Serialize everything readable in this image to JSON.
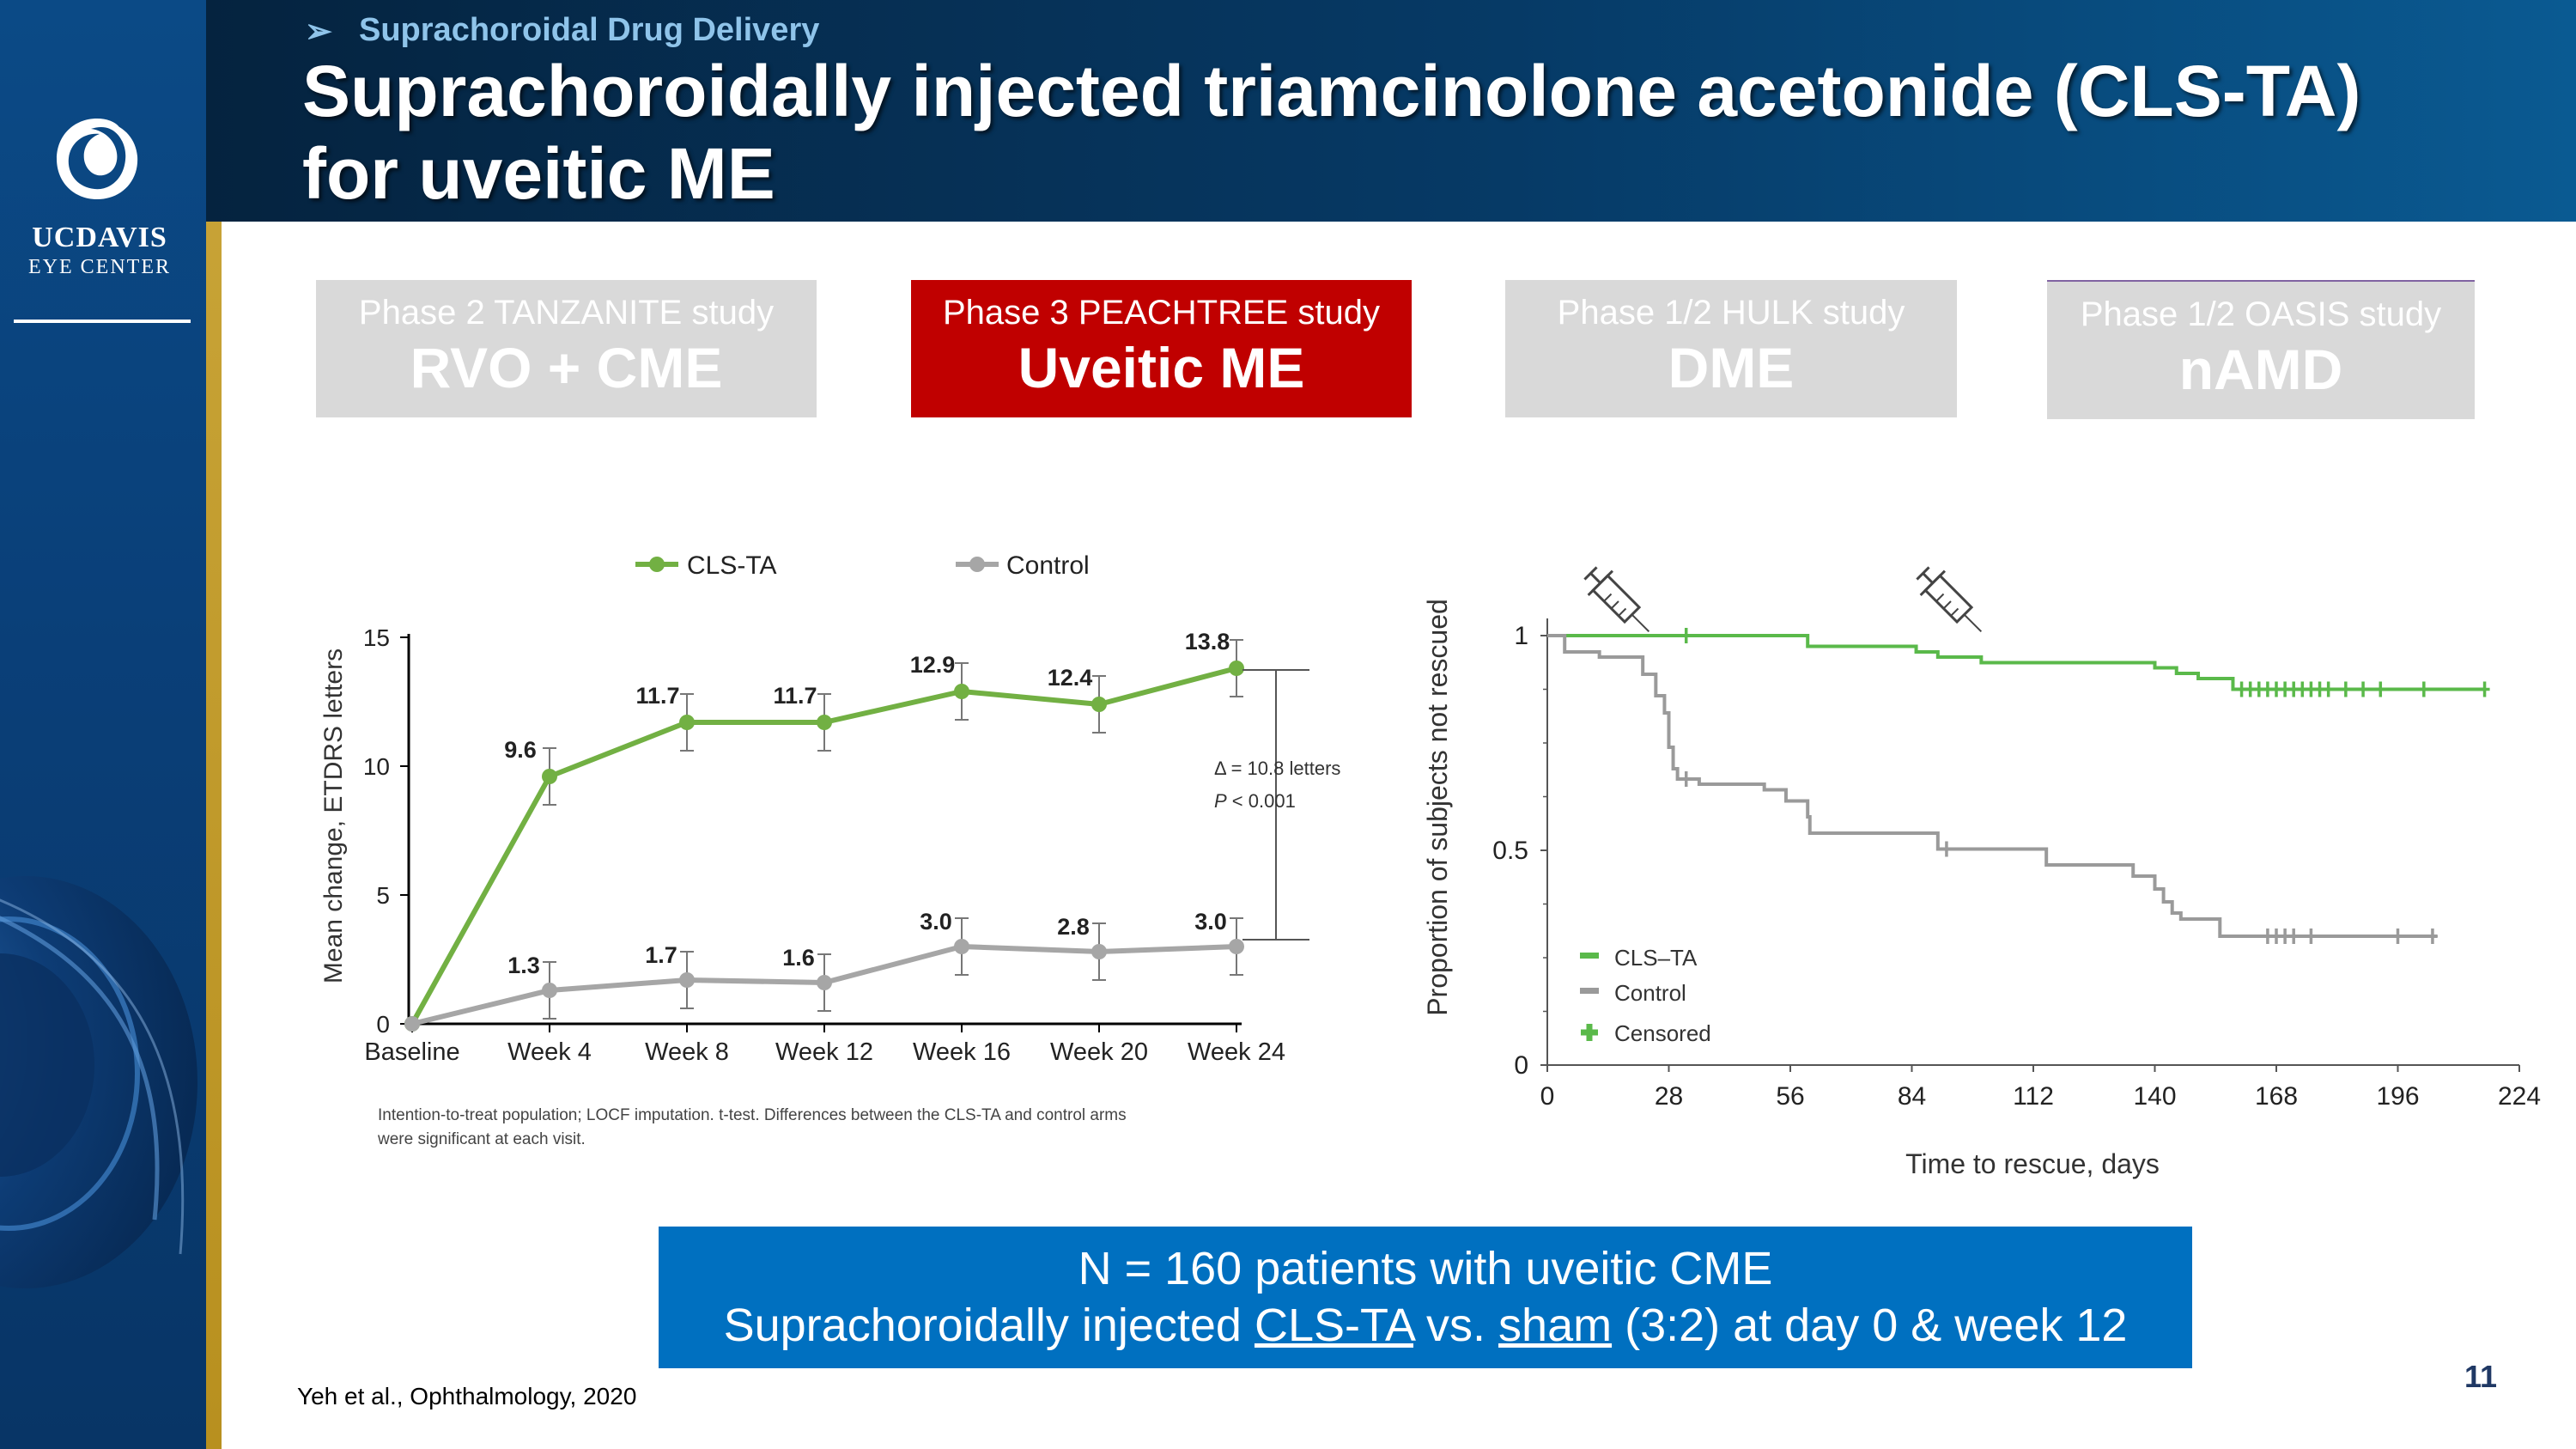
{
  "header": {
    "bullet": "➢",
    "subtitle": "Suprachoroidal Drug Delivery",
    "title_line1": "Suprachoroidally injected triamcinolone acetonide (CLS-TA)",
    "title_line2": "for uveitic ME"
  },
  "logo": {
    "line1_uc": "UC",
    "line1_davis": "DAVIS",
    "line2": "EYE CENTER"
  },
  "studies": [
    {
      "study": "Phase 2 TANZANITE study",
      "indication": "RVO + CME",
      "active": false
    },
    {
      "study": "Phase 3 PEACHTREE study",
      "indication": "Uveitic ME",
      "active": true
    },
    {
      "study": "Phase 1/2 HULK study",
      "indication": "DME",
      "active": false
    },
    {
      "study": "Phase 1/2 OASIS study",
      "indication": "nAMD",
      "active": false
    }
  ],
  "bar": {
    "line1": "N = 160 patients with uveitic CME",
    "line2_a": "Suprachoroidally injected ",
    "line2_b": "CLS-TA",
    "line2_c": " vs. ",
    "line2_d": "sham",
    "line2_e": " (3:2) at day 0 & week 12"
  },
  "citation": "Yeh et al., Ophthalmology, 2020",
  "page_number": "11",
  "colors": {
    "green": "#72b043",
    "gray": "#a6a6a6",
    "red": "#c00000",
    "blue": "#0070c0"
  },
  "chart_data": [
    {
      "type": "line",
      "categories": [
        "Baseline",
        "Week 4",
        "Week 8",
        "Week 12",
        "Week 16",
        "Week 20",
        "Week 24"
      ],
      "ylabel": "Mean change, ETDRS letters",
      "ylim": [
        0,
        15
      ],
      "yticks": [
        0,
        5,
        10,
        15
      ],
      "series": [
        {
          "name": "CLS-TA",
          "color": "#72b043",
          "values": [
            0,
            9.6,
            11.7,
            11.7,
            12.9,
            12.4,
            13.8
          ],
          "labels": [
            "",
            "9.6",
            "11.7",
            "11.7",
            "12.9",
            "12.4",
            "13.8"
          ]
        },
        {
          "name": "Control",
          "color": "#a6a6a6",
          "values": [
            0,
            1.3,
            1.7,
            1.6,
            3.0,
            2.8,
            3.0
          ],
          "labels": [
            "",
            "1.3",
            "1.7",
            "1.6",
            "3.0",
            "2.8",
            "3.0"
          ]
        }
      ],
      "annotation_delta": "Δ = 10.8 letters",
      "annotation_p_italic": "P",
      "annotation_p_rest": " < 0.001",
      "footnote_line1": "Intention-to-treat population; LOCF imputation. t-test. Differences between the CLS-TA and control arms",
      "footnote_line2": "were significant at each visit.",
      "legend": "top"
    },
    {
      "type": "line",
      "step": true,
      "xlabel": "Time to rescue, days",
      "ylabel": "Proportion of subjects not rescued",
      "xlim": [
        0,
        224
      ],
      "ylim": [
        0,
        1
      ],
      "xticks": [
        0,
        28,
        56,
        84,
        112,
        140,
        168,
        196,
        224
      ],
      "yticks": [
        0,
        0.5,
        1
      ],
      "ytick_labels": [
        "0",
        "0.5",
        "1"
      ],
      "legend": "bottom-left",
      "legend_labels": [
        "CLS–TA",
        "Control",
        "Censored"
      ],
      "series": [
        {
          "name": "CLS–TA",
          "color": "#5ab94a",
          "x": [
            0,
            55,
            60,
            80,
            85,
            90,
            100,
            110,
            140,
            145,
            150,
            152,
            158,
            216
          ],
          "y": [
            1,
            1,
            0.975,
            0.975,
            0.962,
            0.95,
            0.937,
            0.937,
            0.925,
            0.912,
            0.9,
            0.9,
            0.875,
            0.875
          ],
          "censored": [
            32,
            160,
            162,
            164,
            166,
            168,
            170,
            172,
            174,
            176,
            178,
            180,
            184,
            188,
            192,
            202,
            216
          ]
        },
        {
          "name": "Control",
          "color": "#9a9a9a",
          "x": [
            0,
            4,
            12,
            22,
            25,
            27,
            28,
            29,
            30,
            35,
            50,
            55,
            60,
            60.5,
            85,
            90,
            110,
            115,
            130,
            135,
            140,
            142,
            144,
            146,
            155,
            205
          ],
          "y": [
            1,
            0.962,
            0.95,
            0.91,
            0.86,
            0.82,
            0.74,
            0.69,
            0.666,
            0.654,
            0.641,
            0.615,
            0.578,
            0.54,
            0.54,
            0.503,
            0.503,
            0.466,
            0.466,
            0.44,
            0.41,
            0.38,
            0.354,
            0.34,
            0.3,
            0.3
          ],
          "censored": [
            32,
            92,
            166,
            168,
            170,
            172,
            176,
            196,
            204
          ]
        }
      ],
      "injection_days": [
        0,
        84
      ]
    }
  ]
}
